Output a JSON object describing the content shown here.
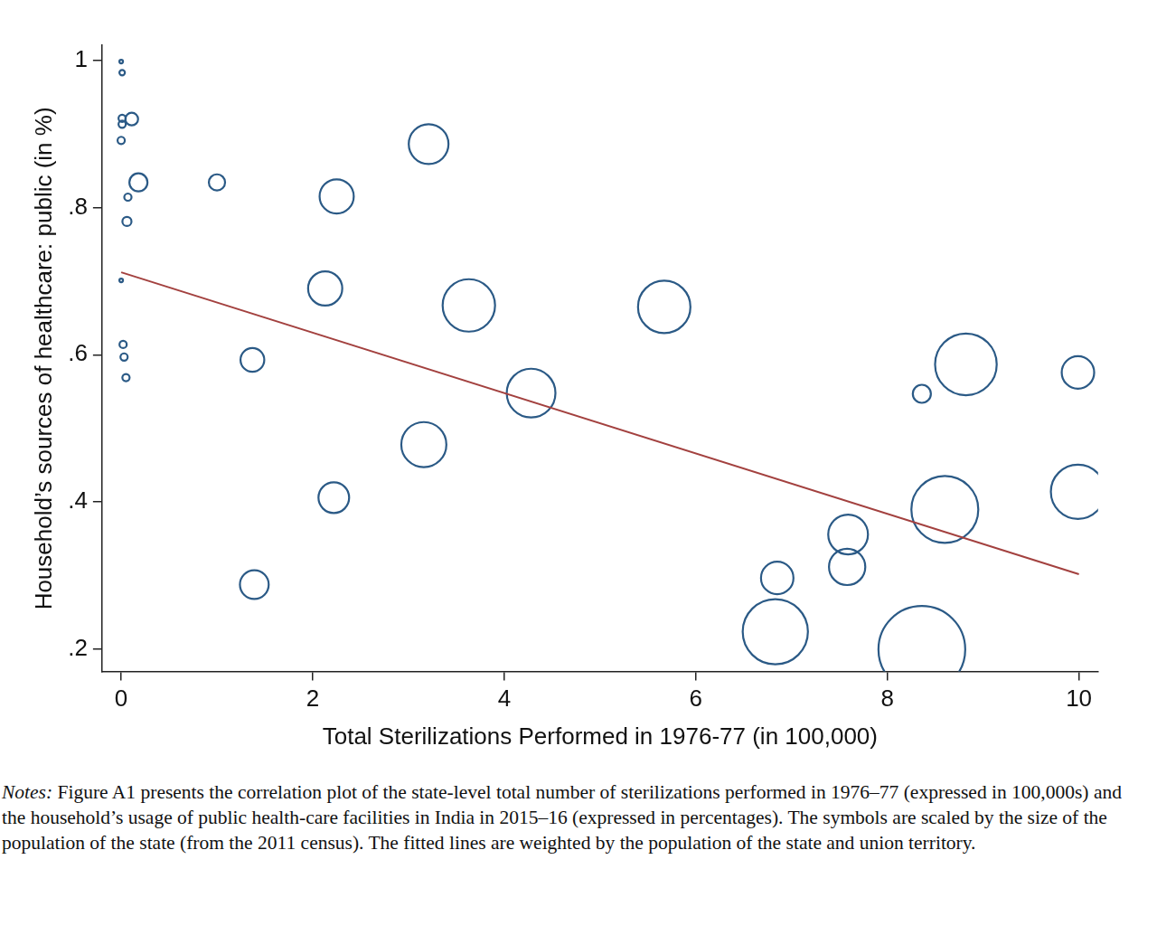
{
  "chart_data": {
    "type": "bubble",
    "x_label": "Total Sterilizations Performed in 1976-77 (in 100,000)",
    "y_label": "Household’s sources of healthcare: public (in %)",
    "x": [
      0.0,
      0.01,
      0.01,
      0.01,
      0.11,
      0.0,
      0.18,
      0.07,
      0.06,
      0.0,
      0.02,
      0.03,
      0.05,
      1.0,
      3.21,
      2.25,
      2.13,
      1.37,
      1.39,
      2.22,
      3.16,
      3.63,
      4.28,
      5.67,
      6.85,
      6.83,
      7.59,
      7.58,
      8.36,
      8.36,
      8.6,
      8.82,
      9.99,
      9.99
    ],
    "values": [
      0.998,
      0.983,
      0.921,
      0.913,
      0.92,
      0.891,
      0.834,
      0.814,
      0.781,
      0.701,
      0.614,
      0.597,
      0.569,
      0.834,
      0.886,
      0.815,
      0.69,
      0.593,
      0.288,
      0.406,
      0.478,
      0.667,
      0.548,
      0.665,
      0.297,
      0.224,
      0.356,
      0.312,
      0.547,
      0.2,
      0.39,
      0.587,
      0.576,
      0.414
    ],
    "sizes": [
      0.35,
      0.8,
      1.4,
      1.4,
      4.3,
      1.4,
      8.7,
      1.4,
      2.2,
      0.35,
      1.4,
      1.4,
      1.4,
      7,
      42,
      31,
      31,
      15,
      22,
      25,
      54,
      73,
      63,
      73,
      28,
      113,
      42,
      35,
      8.7,
      200,
      119,
      101,
      28,
      78
    ],
    "color": "#2b5a86",
    "fit_line": {
      "x": [
        0,
        10
      ],
      "values": [
        0.712,
        0.302
      ],
      "color": "#a3413f"
    },
    "xlim": [
      -0.2,
      10.2
    ],
    "ylim": [
      0.17,
      1.02
    ],
    "xticks": [
      0,
      2,
      4,
      6,
      8,
      10
    ],
    "yticks": [
      {
        "value": 0.2,
        "label": ".2"
      },
      {
        "value": 0.4,
        "label": ".4"
      },
      {
        "value": 0.6,
        "label": ".6"
      },
      {
        "value": 0.8,
        "label": ".8"
      },
      1
    ],
    "grid": false,
    "legend": false
  },
  "notes": {
    "label": "Notes:",
    "text": " Figure A1 presents the correlation plot of the state-level total number of sterilizations performed in 1976–77 (expressed in 100,000s) and the household’s usage of public health-care facilities in India in 2015–16 (expressed in percentages). The symbols are scaled by the size of the population of the state (from the 2011 census). The fitted lines are weighted by the population of the state and union territory."
  }
}
